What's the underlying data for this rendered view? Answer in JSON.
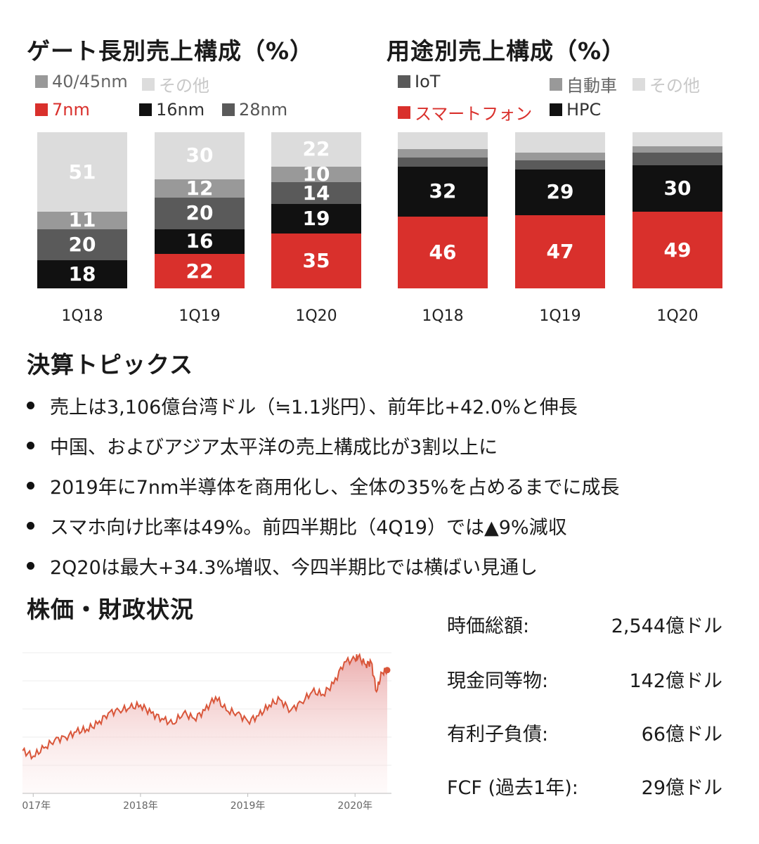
{
  "gate_chart": {
    "title": "ゲート長別売上構成（%）",
    "legend": [
      {
        "name": "40/45nm",
        "color": "#999999",
        "text_color": "#666666"
      },
      {
        "name": "その他",
        "color": "#dcdcdc",
        "text_color": "#c8c8c8"
      },
      {
        "name": "7nm",
        "color": "#d9302c",
        "text_color": "#d9302c"
      },
      {
        "name": "16nm",
        "color": "#111111",
        "text_color": "#333333"
      },
      {
        "name": "28nm",
        "color": "#5a5a5a",
        "text_color": "#555555"
      }
    ]
  },
  "usage_chart": {
    "title": "用途別売上構成（%）",
    "legend": [
      {
        "name": "IoT",
        "color": "#5a5a5a",
        "text_color": "#333333"
      },
      {
        "name": "自動車",
        "color": "#999999",
        "text_color": "#666666"
      },
      {
        "name": "その他",
        "color": "#dcdcdc",
        "text_color": "#c8c8c8"
      },
      {
        "name": "スマートフォン",
        "color": "#d9302c",
        "text_color": "#d9302c"
      },
      {
        "name": "HPC",
        "color": "#111111",
        "text_color": "#333333"
      }
    ]
  },
  "chart_data": [
    {
      "type": "bar",
      "stacked": true,
      "title": "ゲート長別売上構成（%）",
      "categories": [
        "1Q18",
        "1Q19",
        "1Q20"
      ],
      "series": [
        {
          "name": "7nm",
          "color": "#d9302c",
          "values": [
            0,
            22,
            35
          ]
        },
        {
          "name": "16nm",
          "color": "#111111",
          "values": [
            18,
            16,
            19
          ]
        },
        {
          "name": "28nm",
          "color": "#5a5a5a",
          "values": [
            20,
            20,
            14
          ]
        },
        {
          "name": "40/45nm",
          "color": "#999999",
          "values": [
            11,
            12,
            10
          ]
        },
        {
          "name": "その他",
          "color": "#dcdcdc",
          "values": [
            51,
            30,
            22
          ]
        }
      ],
      "ylim": [
        0,
        100
      ]
    },
    {
      "type": "bar",
      "stacked": true,
      "title": "用途別売上構成（%）",
      "categories": [
        "1Q18",
        "1Q19",
        "1Q20"
      ],
      "series": [
        {
          "name": "スマートフォン",
          "color": "#d9302c",
          "values": [
            46,
            47,
            49
          ]
        },
        {
          "name": "HPC",
          "color": "#111111",
          "values": [
            32,
            29,
            30
          ]
        },
        {
          "name": "IoT",
          "color": "#5a5a5a",
          "values": [
            6,
            6,
            8
          ]
        },
        {
          "name": "自動車",
          "color": "#999999",
          "values": [
            5,
            5,
            4
          ]
        },
        {
          "name": "その他",
          "color": "#dcdcdc",
          "values": [
            11,
            13,
            9
          ]
        }
      ],
      "ylim": [
        0,
        100
      ],
      "labeled_series": [
        "スマートフォン",
        "HPC"
      ]
    },
    {
      "type": "area",
      "title": "株価・財政状況",
      "x_tick_labels": [
        "2017年",
        "2018年",
        "2019年",
        "2020年"
      ],
      "x": [
        2016.9,
        2017.0,
        2017.1,
        2017.2,
        2017.3,
        2017.4,
        2017.5,
        2017.6,
        2017.7,
        2017.8,
        2017.9,
        2018.0,
        2018.1,
        2018.2,
        2018.3,
        2018.4,
        2018.5,
        2018.6,
        2018.7,
        2018.8,
        2018.9,
        2019.0,
        2019.1,
        2019.2,
        2019.3,
        2019.4,
        2019.5,
        2019.6,
        2019.7,
        2019.8,
        2019.9,
        2020.0,
        2020.03,
        2020.1,
        2020.15,
        2020.2,
        2020.25,
        2020.3
      ],
      "values": [
        23,
        21,
        24,
        27,
        28,
        30,
        31,
        33,
        37,
        38,
        39,
        40,
        37,
        35,
        33,
        37,
        35,
        38,
        43,
        38,
        37,
        34,
        36,
        40,
        42,
        38,
        41,
        45,
        44,
        48,
        56,
        57,
        58,
        55,
        56,
        45,
        52,
        53
      ],
      "color": "#d9563a"
    }
  ],
  "topics": {
    "title": "決算トピックス",
    "items": [
      "売上は3,106億台湾ドル（≒1.1兆円）、前年比+42.0%と伸長",
      "中国、およびアジア太平洋の売上構成比が3割以上に",
      "2019年に7nm半導体を商用化し、全体の35%を占めるまでに成長",
      "スマホ向け比率は49%。前四半期比（4Q19）では▲9%減収",
      "2Q20は最大+34.3%増収、今四半期比では横ばい見通し"
    ]
  },
  "finance": {
    "title": "株価・財政状況",
    "metrics": [
      {
        "label": "時価総額:",
        "value": "2,544億ドル"
      },
      {
        "label": "現金同等物:",
        "value": "142億ドル"
      },
      {
        "label": "有利子負債:",
        "value": "66億ドル"
      },
      {
        "label": "FCF (過去1年):",
        "value": "29億ドル"
      }
    ]
  }
}
